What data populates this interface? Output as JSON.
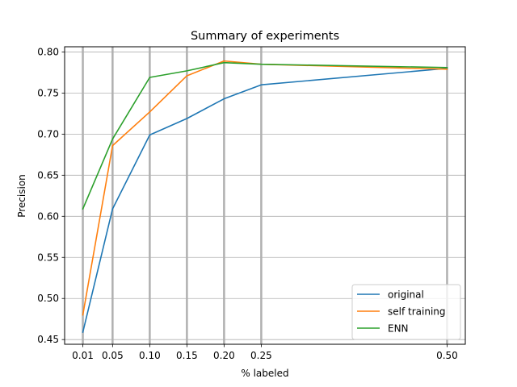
{
  "chart_data": {
    "type": "line",
    "title": "Summary of experiments",
    "xlabel": "% labeled",
    "ylabel": "Precision",
    "x": [
      0.01,
      0.05,
      0.1,
      0.15,
      0.2,
      0.25,
      0.5
    ],
    "x_tick_labels": [
      "0.01",
      "0.05",
      "0.10",
      "0.15",
      "0.20",
      "0.25",
      "0.50"
    ],
    "xlim": [
      -0.0145,
      0.5245
    ],
    "ylim": [
      0.4443,
      0.8063
    ],
    "y_ticks": [
      0.45,
      0.5,
      0.55,
      0.6,
      0.65,
      0.7,
      0.75,
      0.8
    ],
    "y_tick_labels": [
      "0.45",
      "0.50",
      "0.55",
      "0.60",
      "0.65",
      "0.70",
      "0.75",
      "0.80"
    ],
    "grid": true,
    "legend_position": "lower-right",
    "series": [
      {
        "name": "original",
        "color": "#1f77b4",
        "values": [
          0.459,
          0.609,
          0.699,
          0.719,
          0.743,
          0.76,
          0.78
        ]
      },
      {
        "name": "self training",
        "color": "#ff7f0e",
        "values": [
          0.48,
          0.686,
          0.727,
          0.771,
          0.789,
          0.785,
          0.779
        ]
      },
      {
        "name": "ENN",
        "color": "#2ca02c",
        "values": [
          0.609,
          0.694,
          0.769,
          0.777,
          0.787,
          0.785,
          0.781
        ]
      }
    ]
  }
}
